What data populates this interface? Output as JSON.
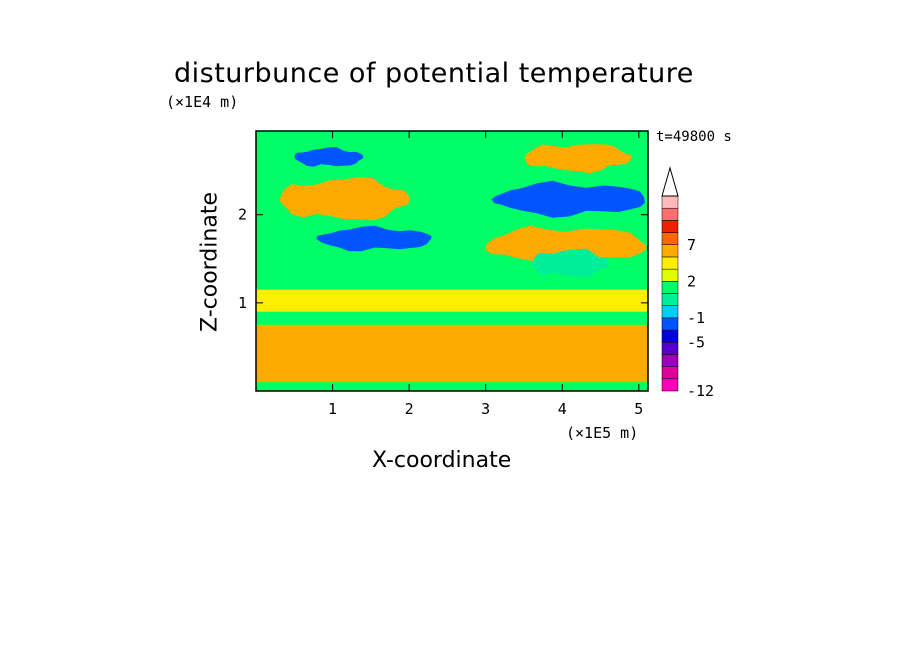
{
  "chart_data": {
    "type": "heatmap",
    "title": "disturbunce of potential temperature",
    "xlabel": "X-coordinate",
    "ylabel": "Z-coordinate",
    "x_unit_label": "(×1E5 m)",
    "z_unit_label": "(×1E4 m)",
    "time_label": "t=49800 s",
    "xlim": [
      0,
      5.12
    ],
    "ylim": [
      0,
      2.95
    ],
    "x_ticks": [
      "1",
      "2",
      "3",
      "4",
      "5"
    ],
    "x_tick_values": [
      1,
      2,
      3,
      4,
      5
    ],
    "y_ticks": [
      "1",
      "2"
    ],
    "y_tick_values": [
      1,
      2
    ],
    "grid": false,
    "colorbar": {
      "levels": [
        -12,
        -11,
        -9,
        -7,
        -5,
        -3,
        -1,
        0,
        1,
        2,
        3,
        5,
        7,
        9,
        11
      ],
      "labeled": [
        "-12",
        "-5",
        "-1",
        "2",
        "7"
      ],
      "labeled_levels": [
        -12,
        -5,
        -1,
        2,
        7
      ],
      "colors": [
        "#ff00bb",
        "#dd0099",
        "#9900bb",
        "#5500cc",
        "#0000dd",
        "#0055ff",
        "#00ccff",
        "#00ee99",
        "#00ff66",
        "#ddff00",
        "#ffee00",
        "#ffaa00",
        "#ff6600",
        "#ee2200",
        "#ff6f6f",
        "#ffbbbb"
      ],
      "extend_max": true
    },
    "field_features": [
      {
        "name": "background",
        "x": [
          0,
          5.12
        ],
        "z": [
          0,
          2.95
        ],
        "value": 0.5
      },
      {
        "name": "top green layer",
        "x": [
          0,
          5.12
        ],
        "z": [
          2.45,
          2.95
        ],
        "value": 0.3
      },
      {
        "name": "top-left warm band",
        "x": [
          0.3,
          2.0
        ],
        "z": [
          1.95,
          2.4
        ],
        "value": 3
      },
      {
        "name": "top-left cold core",
        "x": [
          0.5,
          1.4
        ],
        "z": [
          2.55,
          2.75
        ],
        "value": -4
      },
      {
        "name": "mid-left cold band",
        "x": [
          0.8,
          2.3
        ],
        "z": [
          1.6,
          1.85
        ],
        "value": -4
      },
      {
        "name": "upper-right cold band",
        "x": [
          3.1,
          5.1
        ],
        "z": [
          2.0,
          2.35
        ],
        "value": -5
      },
      {
        "name": "upper-right warm band",
        "x": [
          3.0,
          5.1
        ],
        "z": [
          1.45,
          1.85
        ],
        "value": 3
      },
      {
        "name": "upper-right top warm",
        "x": [
          3.5,
          4.9
        ],
        "z": [
          2.5,
          2.8
        ],
        "value": 3
      },
      {
        "name": "mid cyan patch",
        "x": [
          3.6,
          4.6
        ],
        "z": [
          1.3,
          1.6
        ],
        "value": -1
      },
      {
        "name": "mid yellow band",
        "x": [
          0,
          5.12
        ],
        "z": [
          0.9,
          1.15
        ],
        "value": 2
      },
      {
        "name": "lower warm layer",
        "x": [
          0,
          5.12
        ],
        "z": [
          0.1,
          0.75
        ],
        "value": 3
      },
      {
        "name": "surface green",
        "x": [
          0,
          5.12
        ],
        "z": [
          0,
          0.08
        ],
        "value": 0.3
      }
    ]
  }
}
